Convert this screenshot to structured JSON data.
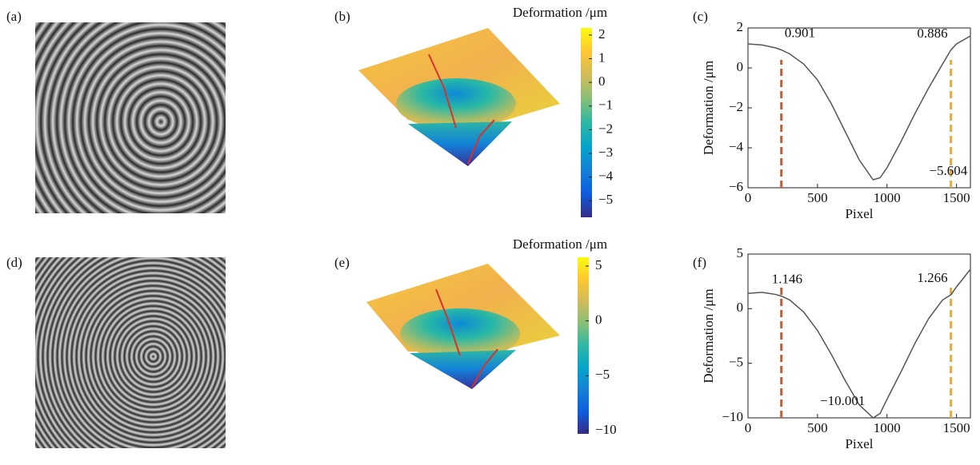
{
  "image_labels": [
    "(a)",
    "(d)"
  ],
  "chart_data": [
    {
      "type": "line",
      "label": "(c)",
      "xlabel": "Pixel",
      "ylabel": "Deformation /μm",
      "xlim": [
        0,
        1600
      ],
      "xticks": [
        0,
        500,
        1000,
        1500
      ],
      "ylim": [
        -6,
        2
      ],
      "yticks": [
        {
          "value": -6,
          "label": "−6"
        },
        {
          "value": -4,
          "label": "−4"
        },
        {
          "value": -2,
          "label": "−2"
        },
        0,
        2
      ],
      "x": [
        0,
        100,
        200,
        240,
        300,
        400,
        500,
        600,
        700,
        800,
        900,
        950,
        1000,
        1100,
        1200,
        1300,
        1400,
        1460,
        1500,
        1600
      ],
      "series": [
        {
          "color": "#555555",
          "values": [
            1.2,
            1.15,
            1.0,
            0.9,
            0.7,
            0.2,
            -0.6,
            -1.8,
            -3.2,
            -4.6,
            -5.6,
            -5.5,
            -5.0,
            -3.7,
            -2.3,
            -1.0,
            0.2,
            0.9,
            1.2,
            1.6
          ]
        }
      ],
      "vlines": [
        {
          "x": 240,
          "color": "#d9542c"
        },
        {
          "x": 1460,
          "color": "#e8a838"
        }
      ],
      "markers": [
        {
          "x": 240,
          "y": 0.901,
          "label": "0.901"
        },
        {
          "x": 1460,
          "y": 0.886,
          "label": "0.886"
        },
        {
          "x": 900,
          "y": -5.604,
          "label": "−5.604"
        }
      ]
    },
    {
      "type": "colorbar",
      "label": "(b)",
      "title": "Deformation /μm",
      "clim": [
        -5.7,
        2.3
      ],
      "ticks": [
        2,
        1,
        0,
        {
          "value": -1,
          "label": "−1"
        },
        {
          "value": -2,
          "label": "−2"
        },
        {
          "value": -3,
          "label": "−3"
        },
        {
          "value": -4,
          "label": "−4"
        },
        {
          "value": -5,
          "label": "−5"
        }
      ],
      "colors": [
        "#352a87",
        "#0f5cdd",
        "#1481d6",
        "#06a4ca",
        "#2eb7a4",
        "#87bf77",
        "#d1bb59",
        "#fec832",
        "#f9fb0e"
      ]
    },
    {
      "type": "line",
      "label": "(f)",
      "xlabel": "Pixel",
      "ylabel": "Deformation /μm",
      "xlim": [
        0,
        1600
      ],
      "xticks": [
        0,
        500,
        1000,
        1500
      ],
      "ylim": [
        -10,
        5
      ],
      "yticks": [
        {
          "value": -10,
          "label": "−10"
        },
        {
          "value": -5,
          "label": "−5"
        },
        0,
        5
      ],
      "x": [
        0,
        100,
        200,
        240,
        300,
        400,
        500,
        600,
        700,
        800,
        900,
        950,
        1000,
        1100,
        1200,
        1300,
        1400,
        1460,
        1500,
        1600
      ],
      "series": [
        {
          "color": "#555555",
          "values": [
            1.4,
            1.5,
            1.3,
            1.15,
            0.8,
            -0.3,
            -2.0,
            -4.2,
            -6.6,
            -8.8,
            -10.0,
            -9.6,
            -8.3,
            -5.8,
            -3.2,
            -0.9,
            0.8,
            1.27,
            2.0,
            3.6
          ]
        }
      ],
      "vlines": [
        {
          "x": 240,
          "color": "#d9542c"
        },
        {
          "x": 1460,
          "color": "#e8a838"
        }
      ],
      "markers": [
        {
          "x": 240,
          "y": 1.146,
          "label": "1.146"
        },
        {
          "x": 1460,
          "y": 1.266,
          "label": "1.266"
        },
        {
          "x": 900,
          "y": -10.001,
          "label": "−10.001"
        }
      ]
    },
    {
      "type": "colorbar",
      "label": "(e)",
      "title": "Deformation /μm",
      "clim": [
        -10.3,
        5.8
      ],
      "ticks": [
        5,
        0,
        {
          "value": -5,
          "label": "−5"
        },
        {
          "value": -10,
          "label": "−10"
        }
      ],
      "colors": [
        "#352a87",
        "#0f5cdd",
        "#1481d6",
        "#06a4ca",
        "#2eb7a4",
        "#87bf77",
        "#d1bb59",
        "#fec832",
        "#f9fb0e"
      ]
    }
  ]
}
